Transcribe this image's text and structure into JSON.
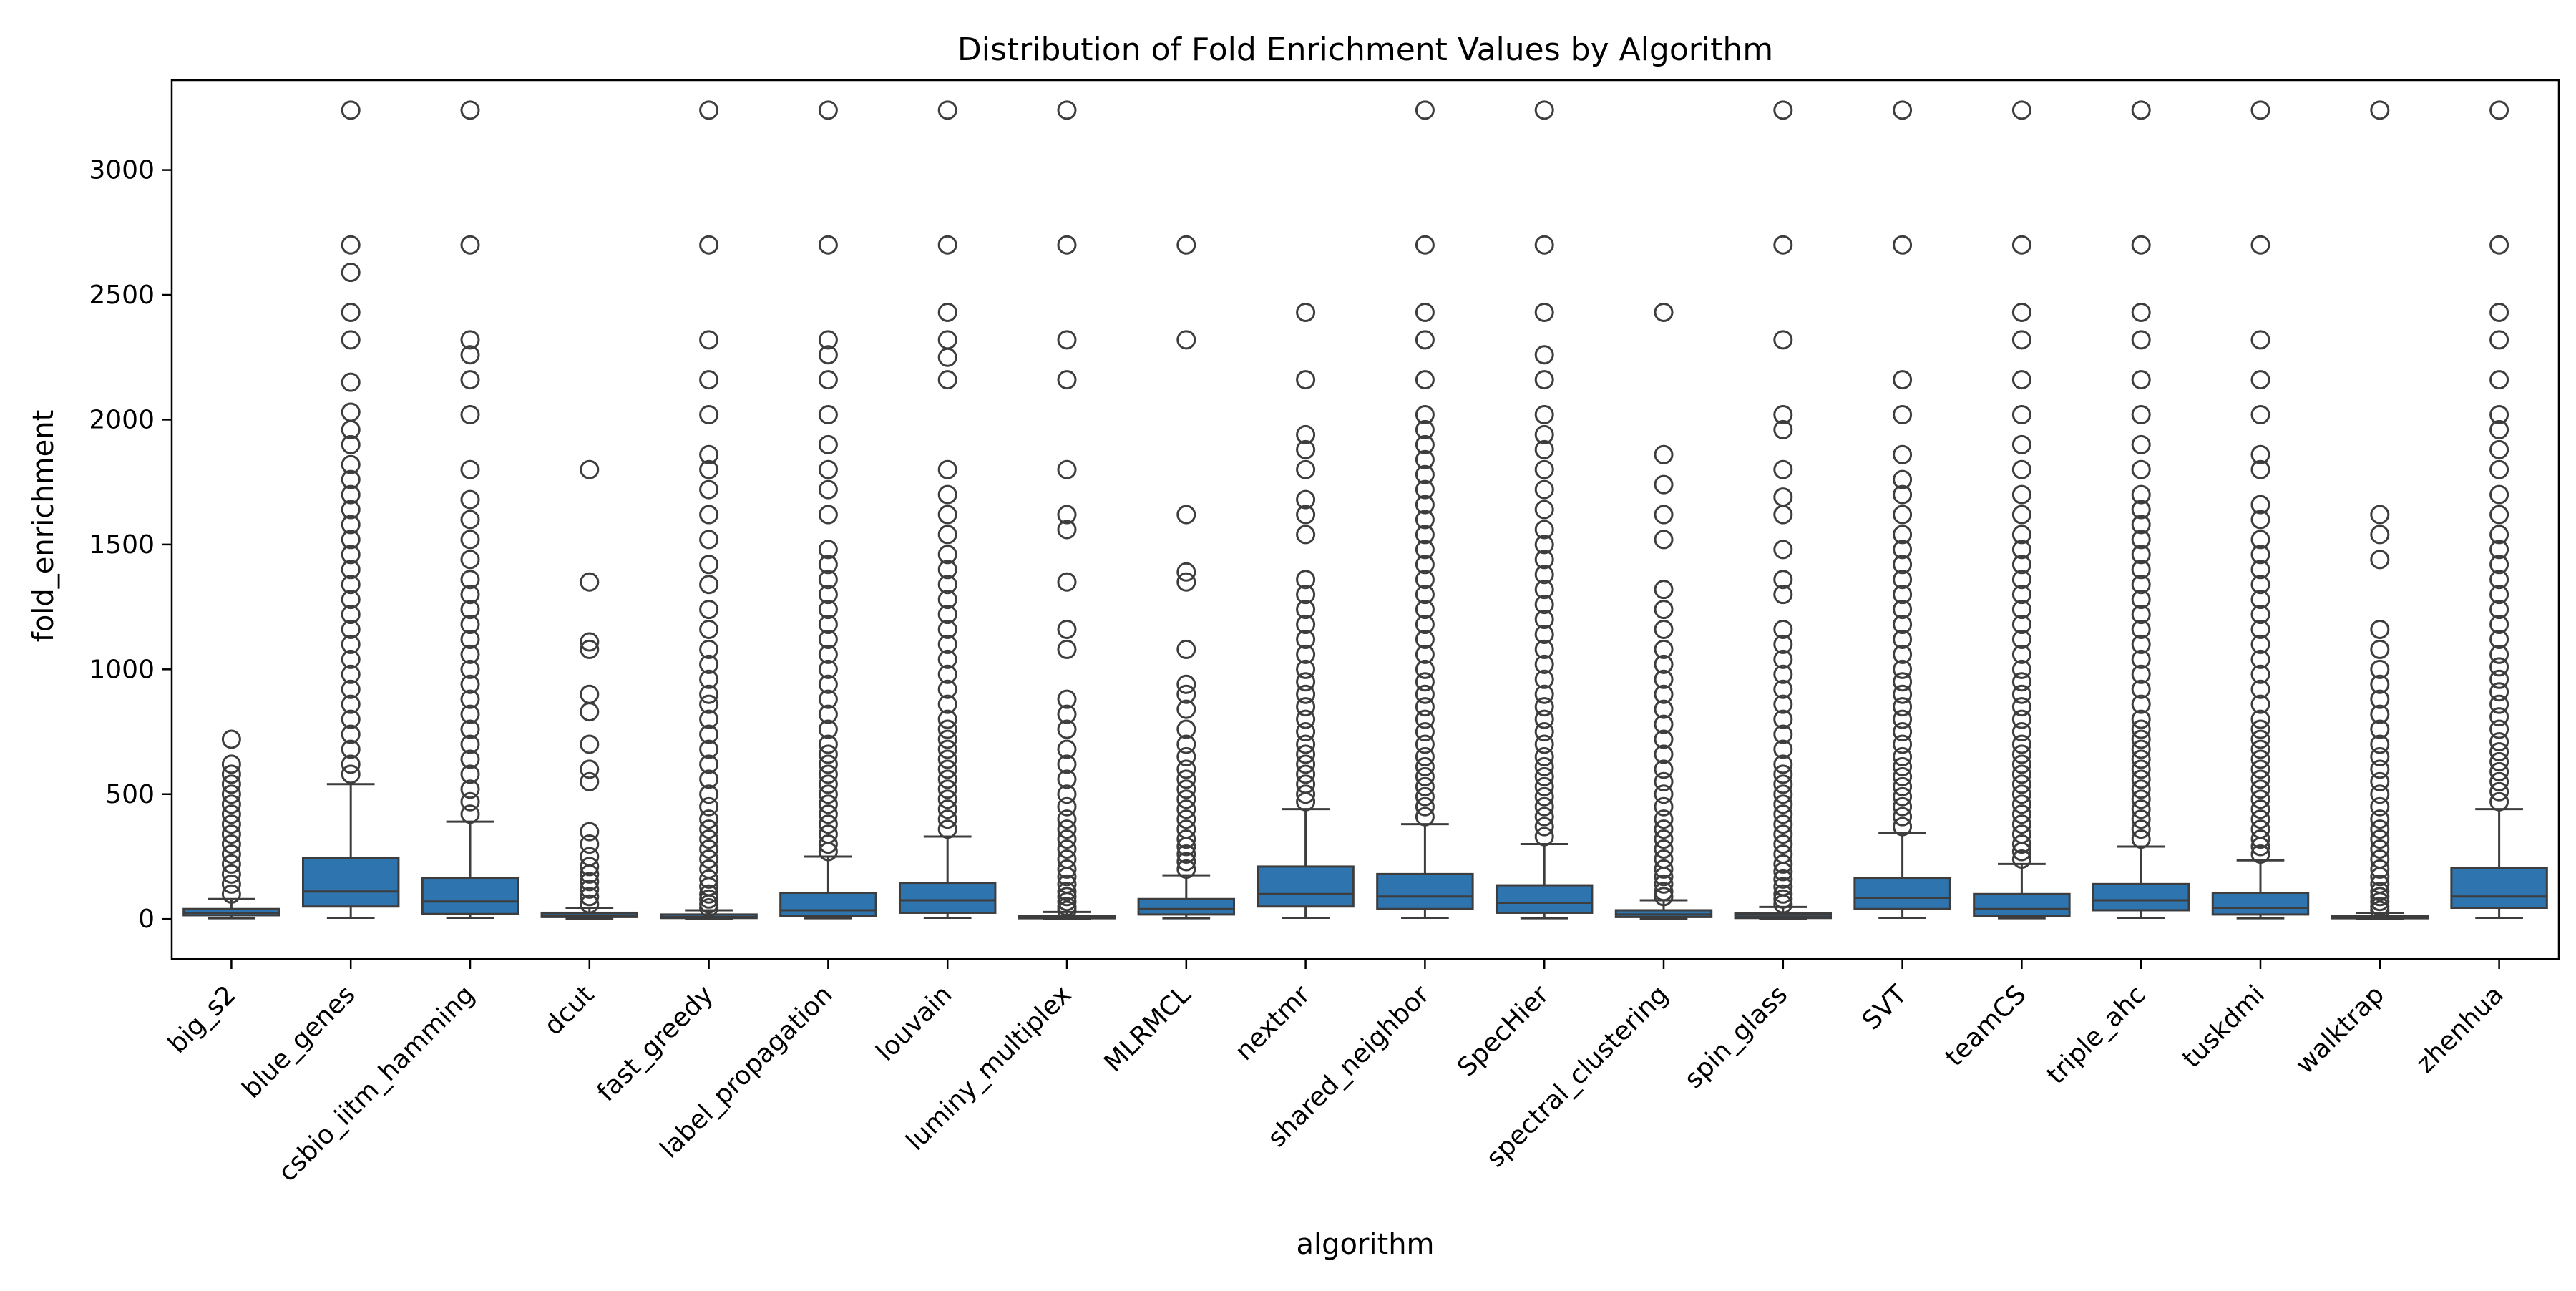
{
  "chart_data": {
    "type": "box",
    "title": "Distribution of Fold Enrichment Values by Algorithm",
    "xlabel": "algorithm",
    "ylabel": "fold_enrichment",
    "ylim": [
      -160,
      3360
    ],
    "yticks": [
      0,
      500,
      1000,
      1500,
      2000,
      2500,
      3000
    ],
    "grid": false,
    "legend": "none",
    "colors": {
      "box": "#2e75b0",
      "line": "#3d3d3d",
      "axis": "#000000"
    },
    "categories": [
      "big_s2",
      "blue_genes",
      "csbio_iitm_hamming",
      "dcut",
      "fast_greedy",
      "label_propagation",
      "louvain",
      "luminy_multiplex",
      "MLRMCL",
      "nextmr",
      "shared_neighbor",
      "SpecHier",
      "spectral_clustering",
      "spin_glass",
      "SVT",
      "teamCS",
      "triple_ahc",
      "tuskdmi",
      "walktrap",
      "zhenhua"
    ],
    "boxes": [
      {
        "min": 3,
        "q1": 15,
        "median": 25,
        "q3": 40,
        "whisker_low": 3,
        "whisker_high": 80,
        "outliers": [
          100,
          140,
          180,
          220,
          260,
          300,
          340,
          380,
          420,
          460,
          500,
          540,
          580,
          620,
          720
        ]
      },
      {
        "min": 5,
        "q1": 50,
        "median": 110,
        "q3": 245,
        "whisker_low": 5,
        "whisker_high": 540,
        "outliers": [
          580,
          620,
          680,
          740,
          800,
          860,
          920,
          980,
          1040,
          1100,
          1160,
          1220,
          1280,
          1340,
          1400,
          1460,
          1520,
          1580,
          1640,
          1700,
          1760,
          1820,
          1900,
          1960,
          2030,
          2150,
          2320,
          2430,
          2590,
          2700,
          3240
        ]
      },
      {
        "min": 5,
        "q1": 20,
        "median": 70,
        "q3": 165,
        "whisker_low": 5,
        "whisker_high": 390,
        "outliers": [
          420,
          470,
          520,
          580,
          640,
          700,
          760,
          820,
          880,
          940,
          1000,
          1060,
          1120,
          1180,
          1240,
          1300,
          1360,
          1440,
          1520,
          1600,
          1680,
          1800,
          2020,
          2160,
          2260,
          2320,
          2700,
          3240
        ]
      },
      {
        "min": 2,
        "q1": 8,
        "median": 15,
        "q3": 25,
        "whisker_low": 2,
        "whisker_high": 45,
        "outliers": [
          60,
          90,
          120,
          150,
          180,
          210,
          250,
          300,
          350,
          550,
          600,
          700,
          830,
          900,
          1080,
          1110,
          1350,
          1800
        ]
      },
      {
        "min": 2,
        "q1": 4,
        "median": 8,
        "q3": 18,
        "whisker_low": 2,
        "whisker_high": 35,
        "outliers": [
          45,
          60,
          80,
          100,
          130,
          160,
          200,
          240,
          280,
          320,
          360,
          400,
          450,
          500,
          560,
          620,
          680,
          740,
          800,
          860,
          900,
          960,
          1020,
          1080,
          1160,
          1240,
          1340,
          1420,
          1520,
          1620,
          1720,
          1800,
          1860,
          2020,
          2160,
          2320,
          2700,
          3240
        ]
      },
      {
        "min": 3,
        "q1": 12,
        "median": 35,
        "q3": 105,
        "whisker_low": 3,
        "whisker_high": 250,
        "outliers": [
          270,
          300,
          340,
          380,
          420,
          460,
          500,
          540,
          580,
          620,
          660,
          700,
          760,
          820,
          880,
          940,
          1000,
          1060,
          1120,
          1180,
          1240,
          1300,
          1360,
          1420,
          1480,
          1620,
          1720,
          1800,
          1900,
          2020,
          2160,
          2260,
          2320,
          2700,
          3240
        ]
      },
      {
        "min": 5,
        "q1": 25,
        "median": 75,
        "q3": 145,
        "whisker_low": 5,
        "whisker_high": 330,
        "outliers": [
          360,
          400,
          440,
          480,
          520,
          560,
          600,
          640,
          680,
          720,
          760,
          800,
          860,
          920,
          980,
          1040,
          1100,
          1160,
          1220,
          1280,
          1340,
          1400,
          1460,
          1540,
          1620,
          1700,
          1800,
          2160,
          2250,
          2320,
          2430,
          2700,
          3240
        ]
      },
      {
        "min": 1,
        "q1": 3,
        "median": 6,
        "q3": 13,
        "whisker_low": 1,
        "whisker_high": 28,
        "outliers": [
          35,
          50,
          70,
          90,
          110,
          140,
          170,
          200,
          240,
          280,
          320,
          360,
          400,
          450,
          500,
          560,
          620,
          680,
          760,
          820,
          880,
          1080,
          1160,
          1350,
          1560,
          1620,
          1800,
          2160,
          2320,
          2700,
          3240
        ]
      },
      {
        "min": 3,
        "q1": 18,
        "median": 40,
        "q3": 80,
        "whisker_low": 3,
        "whisker_high": 175,
        "outliers": [
          200,
          230,
          260,
          290,
          320,
          360,
          400,
          440,
          480,
          520,
          560,
          600,
          650,
          700,
          760,
          840,
          900,
          940,
          1080,
          1350,
          1390,
          1620,
          2320,
          2700
        ]
      },
      {
        "min": 5,
        "q1": 50,
        "median": 100,
        "q3": 210,
        "whisker_low": 5,
        "whisker_high": 440,
        "outliers": [
          470,
          500,
          540,
          580,
          620,
          660,
          700,
          750,
          800,
          850,
          900,
          950,
          1000,
          1060,
          1120,
          1180,
          1240,
          1300,
          1360,
          1540,
          1620,
          1680,
          1800,
          1880,
          1940,
          2160,
          2430
        ]
      },
      {
        "min": 5,
        "q1": 40,
        "median": 90,
        "q3": 180,
        "whisker_low": 5,
        "whisker_high": 380,
        "outliers": [
          410,
          450,
          490,
          530,
          570,
          610,
          650,
          700,
          750,
          800,
          850,
          900,
          950,
          1000,
          1060,
          1120,
          1180,
          1240,
          1300,
          1360,
          1420,
          1480,
          1540,
          1600,
          1660,
          1720,
          1780,
          1840,
          1900,
          1960,
          2020,
          2160,
          2320,
          2430,
          2700,
          3240
        ]
      },
      {
        "min": 3,
        "q1": 25,
        "median": 65,
        "q3": 135,
        "whisker_low": 3,
        "whisker_high": 300,
        "outliers": [
          330,
          370,
          410,
          450,
          490,
          530,
          570,
          610,
          650,
          700,
          750,
          800,
          850,
          900,
          960,
          1020,
          1080,
          1140,
          1200,
          1260,
          1320,
          1380,
          1440,
          1500,
          1560,
          1640,
          1720,
          1800,
          1880,
          1940,
          2020,
          2160,
          2260,
          2430,
          2700,
          3240
        ]
      },
      {
        "min": 2,
        "q1": 8,
        "median": 18,
        "q3": 35,
        "whisker_low": 2,
        "whisker_high": 75,
        "outliers": [
          90,
          110,
          140,
          170,
          200,
          240,
          280,
          320,
          360,
          400,
          450,
          500,
          550,
          600,
          660,
          720,
          780,
          840,
          900,
          960,
          1020,
          1080,
          1160,
          1240,
          1320,
          1520,
          1620,
          1740,
          1860,
          2430
        ]
      },
      {
        "min": 1,
        "q1": 4,
        "median": 10,
        "q3": 22,
        "whisker_low": 1,
        "whisker_high": 48,
        "outliers": [
          60,
          80,
          100,
          130,
          160,
          190,
          220,
          260,
          300,
          340,
          380,
          420,
          460,
          500,
          540,
          580,
          620,
          680,
          740,
          800,
          860,
          920,
          980,
          1040,
          1100,
          1160,
          1300,
          1360,
          1480,
          1620,
          1690,
          1800,
          1960,
          2020,
          2320,
          2700,
          3240
        ]
      },
      {
        "min": 5,
        "q1": 40,
        "median": 85,
        "q3": 165,
        "whisker_low": 5,
        "whisker_high": 345,
        "outliers": [
          370,
          410,
          450,
          490,
          530,
          570,
          610,
          650,
          700,
          750,
          800,
          850,
          900,
          950,
          1000,
          1060,
          1120,
          1180,
          1240,
          1300,
          1360,
          1420,
          1480,
          1540,
          1620,
          1700,
          1760,
          1860,
          2020,
          2160,
          2700,
          3240
        ]
      },
      {
        "min": 3,
        "q1": 12,
        "median": 40,
        "q3": 100,
        "whisker_low": 3,
        "whisker_high": 220,
        "outliers": [
          240,
          270,
          300,
          340,
          380,
          420,
          460,
          500,
          540,
          580,
          620,
          660,
          700,
          750,
          800,
          850,
          900,
          950,
          1000,
          1060,
          1120,
          1180,
          1240,
          1300,
          1360,
          1420,
          1480,
          1540,
          1620,
          1700,
          1800,
          1900,
          2020,
          2160,
          2320,
          2430,
          2700,
          3240
        ]
      },
      {
        "min": 5,
        "q1": 35,
        "median": 75,
        "q3": 140,
        "whisker_low": 5,
        "whisker_high": 290,
        "outliers": [
          320,
          360,
          400,
          440,
          480,
          520,
          560,
          600,
          640,
          680,
          720,
          760,
          800,
          860,
          920,
          980,
          1040,
          1100,
          1160,
          1220,
          1280,
          1340,
          1400,
          1460,
          1520,
          1580,
          1640,
          1700,
          1800,
          1900,
          2020,
          2160,
          2320,
          2430,
          2700,
          3240
        ]
      },
      {
        "min": 3,
        "q1": 18,
        "median": 45,
        "q3": 105,
        "whisker_low": 3,
        "whisker_high": 235,
        "outliers": [
          260,
          290,
          320,
          360,
          400,
          440,
          480,
          520,
          560,
          600,
          640,
          680,
          720,
          760,
          800,
          860,
          920,
          980,
          1040,
          1100,
          1160,
          1220,
          1280,
          1340,
          1400,
          1460,
          1520,
          1600,
          1660,
          1800,
          1860,
          2020,
          2160,
          2320,
          2700,
          3240
        ]
      },
      {
        "min": 1,
        "q1": 3,
        "median": 6,
        "q3": 12,
        "whisker_low": 1,
        "whisker_high": 25,
        "outliers": [
          35,
          50,
          70,
          90,
          110,
          140,
          170,
          200,
          240,
          280,
          320,
          360,
          400,
          450,
          500,
          550,
          600,
          650,
          700,
          760,
          820,
          880,
          940,
          1000,
          1080,
          1160,
          1440,
          1540,
          1620,
          3240
        ]
      },
      {
        "min": 5,
        "q1": 45,
        "median": 90,
        "q3": 205,
        "whisker_low": 5,
        "whisker_high": 440,
        "outliers": [
          470,
          510,
          550,
          590,
          630,
          670,
          710,
          760,
          810,
          860,
          910,
          960,
          1010,
          1060,
          1120,
          1180,
          1240,
          1300,
          1360,
          1420,
          1480,
          1540,
          1620,
          1700,
          1800,
          1880,
          1960,
          2020,
          2160,
          2320,
          2430,
          2700,
          3240
        ]
      }
    ]
  }
}
